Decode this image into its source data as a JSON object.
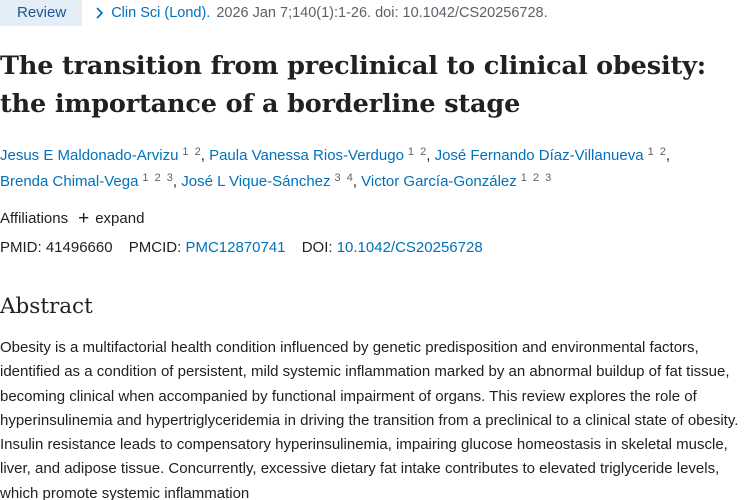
{
  "article_type": "Review",
  "citation": {
    "journal": "Clin Sci (Lond).",
    "details": "2026 Jan 7;140(1):1-26. doi: 10.1042/CS20256728."
  },
  "title": "The transition from preclinical to clinical obesity: the importance of a borderline stage",
  "authors": [
    {
      "name": "Jesus E Maldonado-Arvizu",
      "affiliations": "1 2"
    },
    {
      "name": "Paula Vanessa Rios-Verdugo",
      "affiliations": "1 2"
    },
    {
      "name": "José Fernando Díaz-Villanueva",
      "affiliations": "1 2"
    },
    {
      "name": "Brenda Chimal-Vega",
      "affiliations": "1 2 3"
    },
    {
      "name": "José L Vique-Sánchez",
      "affiliations": "3 4"
    },
    {
      "name": "Victor García-González",
      "affiliations": "1 2 3"
    }
  ],
  "affiliations": {
    "label": "Affiliations",
    "expand_label": "expand"
  },
  "identifiers": {
    "pmid_label": "PMID:",
    "pmid": "41496660",
    "pmcid_label": "PMCID:",
    "pmcid": "PMC12870741",
    "doi_label": "DOI:",
    "doi": "10.1042/CS20256728"
  },
  "abstract": {
    "heading": "Abstract",
    "text": "Obesity is a multifactorial health condition influenced by genetic predisposition and environmental factors, identified as a condition of persistent, mild systemic inflammation marked by an abnormal buildup of fat tissue, becoming clinical when accompanied by functional impairment of organs. This review explores the role of hyperinsulinemia and hypertriglyceridemia in driving the transition from a preclinical to a clinical state of obesity. Insulin resistance leads to compensatory hyperinsulinemia, impairing glucose homeostasis in skeletal muscle, liver, and adipose tissue. Concurrently, excessive dietary fat intake contributes to elevated triglyceride levels, which promote systemic inflammation"
  },
  "colors": {
    "link": "#0071bc",
    "badge_bg": "#e3eef7",
    "badge_text": "#205493",
    "muted": "#5b616b",
    "text": "#212121"
  },
  "icons": {
    "citation_chevron": "chevron-right-icon",
    "expand": "plus-icon"
  }
}
